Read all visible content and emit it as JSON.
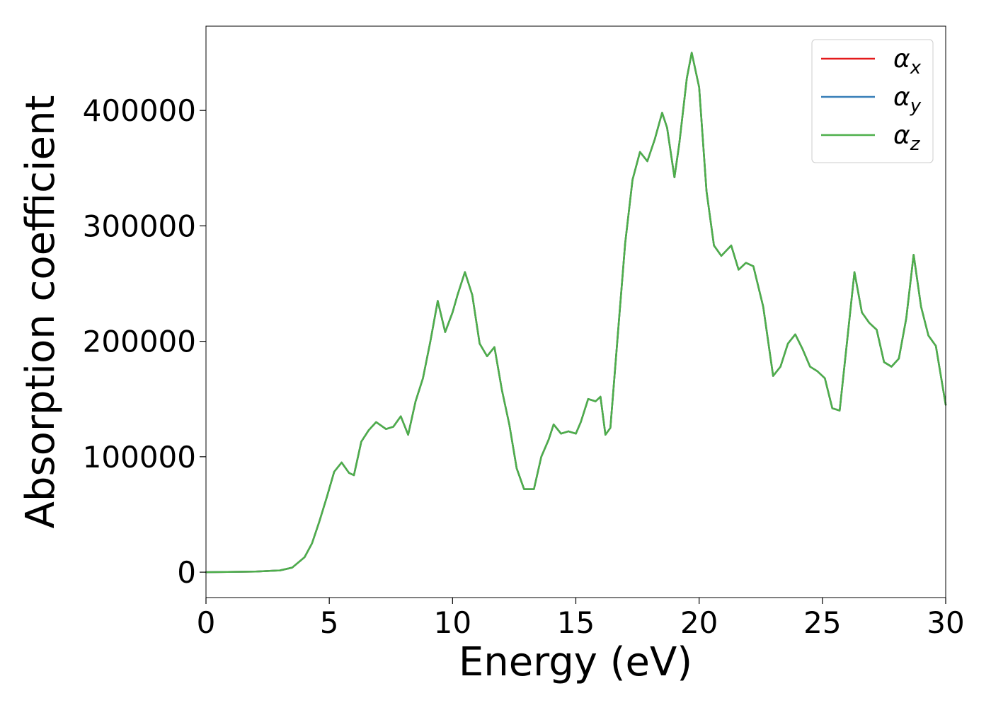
{
  "chart_data": {
    "type": "line",
    "title": "",
    "xlabel": "Energy (eV)",
    "ylabel": "Absorption coefficient",
    "xlim": [
      0,
      30
    ],
    "ylim": [
      -22000,
      473000
    ],
    "x_ticks": [
      0,
      5,
      10,
      15,
      20,
      25,
      30
    ],
    "y_ticks": [
      0,
      100000,
      200000,
      300000,
      400000
    ],
    "grid": false,
    "legend_position": "top-right",
    "series": [
      {
        "name": "α_x",
        "legend_base": "α",
        "legend_sub": "x",
        "color": "#e41a1c",
        "x": [
          0,
          2,
          3,
          3.5,
          4,
          4.3,
          4.6,
          4.9,
          5.2,
          5.5,
          5.8,
          6.0,
          6.3,
          6.6,
          6.9,
          7.3,
          7.6,
          7.9,
          8.2,
          8.5,
          8.8,
          9.1,
          9.4,
          9.7,
          10.0,
          10.2,
          10.5,
          10.8,
          11.1,
          11.4,
          11.7,
          12.0,
          12.3,
          12.6,
          12.9,
          13.3,
          13.6,
          13.9,
          14.1,
          14.4,
          14.7,
          15.0,
          15.2,
          15.5,
          15.8,
          16.0,
          16.2,
          16.4,
          16.7,
          17.0,
          17.3,
          17.6,
          17.9,
          18.2,
          18.5,
          18.7,
          19.0,
          19.2,
          19.5,
          19.7,
          20.0,
          20.3,
          20.6,
          20.9,
          21.3,
          21.6,
          21.9,
          22.2,
          22.6,
          23.0,
          23.3,
          23.6,
          23.9,
          24.2,
          24.5,
          24.8,
          25.1,
          25.4,
          25.7,
          26.0,
          26.3,
          26.6,
          26.9,
          27.2,
          27.5,
          27.8,
          28.1,
          28.4,
          28.7,
          29.0,
          29.3,
          29.6,
          30.0
        ],
        "values": [
          0,
          500,
          1500,
          4000,
          13000,
          25000,
          44000,
          65000,
          87000,
          95000,
          86000,
          84000,
          113000,
          123000,
          130000,
          124000,
          126000,
          135000,
          119000,
          148000,
          168000,
          200000,
          235000,
          208000,
          225000,
          240000,
          260000,
          240000,
          198000,
          187000,
          195000,
          158000,
          128000,
          90000,
          72000,
          72000,
          100000,
          115000,
          128000,
          120000,
          122000,
          120000,
          130000,
          150000,
          148000,
          152000,
          119000,
          125000,
          205000,
          285000,
          340000,
          364000,
          356000,
          375000,
          398000,
          385000,
          342000,
          372000,
          428000,
          450000,
          420000,
          330000,
          283000,
          274000,
          283000,
          262000,
          268000,
          265000,
          230000,
          170000,
          178000,
          198000,
          206000,
          193000,
          178000,
          174000,
          168000,
          142000,
          140000,
          200000,
          260000,
          225000,
          216000,
          210000,
          182000,
          178000,
          185000,
          220000,
          275000,
          230000,
          205000,
          196000,
          145000
        ]
      },
      {
        "name": "α_y",
        "legend_base": "α",
        "legend_sub": "y",
        "color": "#377eb8",
        "x": [
          0,
          2,
          3,
          3.5,
          4,
          4.3,
          4.6,
          4.9,
          5.2,
          5.5,
          5.8,
          6.0,
          6.3,
          6.6,
          6.9,
          7.3,
          7.6,
          7.9,
          8.2,
          8.5,
          8.8,
          9.1,
          9.4,
          9.7,
          10.0,
          10.2,
          10.5,
          10.8,
          11.1,
          11.4,
          11.7,
          12.0,
          12.3,
          12.6,
          12.9,
          13.3,
          13.6,
          13.9,
          14.1,
          14.4,
          14.7,
          15.0,
          15.2,
          15.5,
          15.8,
          16.0,
          16.2,
          16.4,
          16.7,
          17.0,
          17.3,
          17.6,
          17.9,
          18.2,
          18.5,
          18.7,
          19.0,
          19.2,
          19.5,
          19.7,
          20.0,
          20.3,
          20.6,
          20.9,
          21.3,
          21.6,
          21.9,
          22.2,
          22.6,
          23.0,
          23.3,
          23.6,
          23.9,
          24.2,
          24.5,
          24.8,
          25.1,
          25.4,
          25.7,
          26.0,
          26.3,
          26.6,
          26.9,
          27.2,
          27.5,
          27.8,
          28.1,
          28.4,
          28.7,
          29.0,
          29.3,
          29.6,
          30.0
        ],
        "values": [
          0,
          500,
          1500,
          4000,
          13000,
          25000,
          44000,
          65000,
          87000,
          95000,
          86000,
          84000,
          113000,
          123000,
          130000,
          124000,
          126000,
          135000,
          119000,
          148000,
          168000,
          200000,
          235000,
          208000,
          225000,
          240000,
          260000,
          240000,
          198000,
          187000,
          195000,
          158000,
          128000,
          90000,
          72000,
          72000,
          100000,
          115000,
          128000,
          120000,
          122000,
          120000,
          130000,
          150000,
          148000,
          152000,
          119000,
          125000,
          205000,
          285000,
          340000,
          364000,
          356000,
          375000,
          398000,
          385000,
          342000,
          372000,
          428000,
          450000,
          420000,
          330000,
          283000,
          274000,
          283000,
          262000,
          268000,
          265000,
          230000,
          170000,
          178000,
          198000,
          206000,
          193000,
          178000,
          174000,
          168000,
          142000,
          140000,
          200000,
          260000,
          225000,
          216000,
          210000,
          182000,
          178000,
          185000,
          220000,
          275000,
          230000,
          205000,
          196000,
          145000
        ]
      },
      {
        "name": "α_z",
        "legend_base": "α",
        "legend_sub": "z",
        "color": "#4daf4a",
        "x": [
          0,
          2,
          3,
          3.5,
          4,
          4.3,
          4.6,
          4.9,
          5.2,
          5.5,
          5.8,
          6.0,
          6.3,
          6.6,
          6.9,
          7.3,
          7.6,
          7.9,
          8.2,
          8.5,
          8.8,
          9.1,
          9.4,
          9.7,
          10.0,
          10.2,
          10.5,
          10.8,
          11.1,
          11.4,
          11.7,
          12.0,
          12.3,
          12.6,
          12.9,
          13.3,
          13.6,
          13.9,
          14.1,
          14.4,
          14.7,
          15.0,
          15.2,
          15.5,
          15.8,
          16.0,
          16.2,
          16.4,
          16.7,
          17.0,
          17.3,
          17.6,
          17.9,
          18.2,
          18.5,
          18.7,
          19.0,
          19.2,
          19.5,
          19.7,
          20.0,
          20.3,
          20.6,
          20.9,
          21.3,
          21.6,
          21.9,
          22.2,
          22.6,
          23.0,
          23.3,
          23.6,
          23.9,
          24.2,
          24.5,
          24.8,
          25.1,
          25.4,
          25.7,
          26.0,
          26.3,
          26.6,
          26.9,
          27.2,
          27.5,
          27.8,
          28.1,
          28.4,
          28.7,
          29.0,
          29.3,
          29.6,
          30.0
        ],
        "values": [
          0,
          500,
          1500,
          4000,
          13000,
          25000,
          44000,
          65000,
          87000,
          95000,
          86000,
          84000,
          113000,
          123000,
          130000,
          124000,
          126000,
          135000,
          119000,
          148000,
          168000,
          200000,
          235000,
          208000,
          225000,
          240000,
          260000,
          240000,
          198000,
          187000,
          195000,
          158000,
          128000,
          90000,
          72000,
          72000,
          100000,
          115000,
          128000,
          120000,
          122000,
          120000,
          130000,
          150000,
          148000,
          152000,
          119000,
          125000,
          205000,
          285000,
          340000,
          364000,
          356000,
          375000,
          398000,
          385000,
          342000,
          372000,
          428000,
          450000,
          420000,
          330000,
          283000,
          274000,
          283000,
          262000,
          268000,
          265000,
          230000,
          170000,
          178000,
          198000,
          206000,
          193000,
          178000,
          174000,
          168000,
          142000,
          140000,
          200000,
          260000,
          225000,
          216000,
          210000,
          182000,
          178000,
          185000,
          220000,
          275000,
          230000,
          205000,
          196000,
          145000
        ]
      }
    ]
  }
}
